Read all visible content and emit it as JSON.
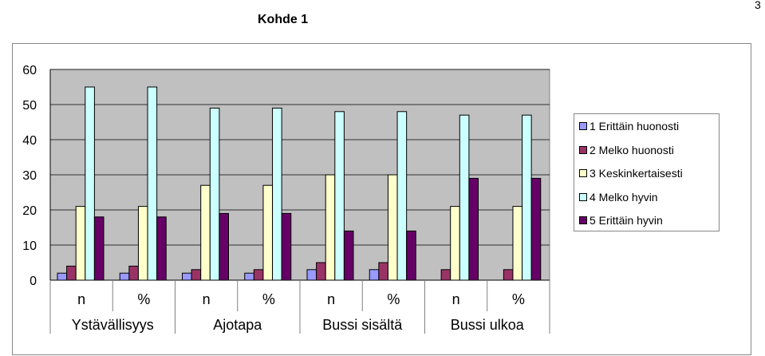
{
  "page_number": "3",
  "chart_data": {
    "type": "bar",
    "title": "Kohde 1",
    "ylim": [
      0,
      60
    ],
    "yticks": [
      0,
      10,
      20,
      30,
      40,
      50,
      60
    ],
    "grid": true,
    "legend_position": "right",
    "categories": [
      "n",
      "%",
      "n",
      "%",
      "n",
      "%",
      "n",
      "%"
    ],
    "groups": [
      "Ystävällisyys",
      "Ajotapa",
      "Bussi sisältä",
      "Bussi ulkoa"
    ],
    "series": [
      {
        "name": "1 Erittäin huonosti",
        "color": "#9999ff",
        "values": [
          2,
          2,
          2,
          2,
          3,
          3,
          0,
          0
        ]
      },
      {
        "name": "2 Melko huonosti",
        "color": "#993366",
        "values": [
          4,
          4,
          3,
          3,
          5,
          5,
          3,
          3
        ]
      },
      {
        "name": "3 Keskinkertaisesti",
        "color": "#ffffcc",
        "values": [
          21,
          21,
          27,
          27,
          30,
          30,
          21,
          21
        ]
      },
      {
        "name": "4 Melko hyvin",
        "color": "#ccffff",
        "values": [
          55,
          55,
          49,
          49,
          48,
          48,
          47,
          47
        ]
      },
      {
        "name": "5 Erittäin hyvin",
        "color": "#660066",
        "values": [
          18,
          18,
          19,
          19,
          14,
          14,
          29,
          29
        ]
      }
    ],
    "plot_background": "#c0c0c0"
  }
}
